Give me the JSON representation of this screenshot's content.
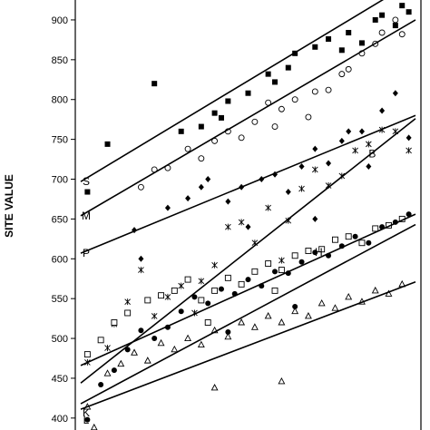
{
  "chart_data": {
    "type": "scatter",
    "ylabel": "SITE VALUE",
    "y_ticks": [
      400,
      450,
      500,
      550,
      600,
      650,
      700,
      750,
      800,
      850,
      900
    ],
    "ylim": [
      385,
      925
    ],
    "xlim": [
      0,
      100
    ],
    "grid": false,
    "series": [
      {
        "name": "S",
        "marker": "filled-square",
        "points": [
          [
            2,
            684
          ],
          [
            8,
            744
          ],
          [
            22,
            820
          ],
          [
            30,
            760
          ],
          [
            36,
            766
          ],
          [
            40,
            783
          ],
          [
            42,
            777
          ],
          [
            50,
            808
          ],
          [
            56,
            832
          ],
          [
            62,
            840
          ],
          [
            64,
            858
          ],
          [
            70,
            866
          ],
          [
            74,
            876
          ],
          [
            80,
            884
          ],
          [
            84,
            871
          ],
          [
            88,
            900
          ],
          [
            90,
            906
          ],
          [
            94,
            893
          ],
          [
            96,
            918
          ],
          [
            98,
            910
          ],
          [
            44,
            798
          ],
          [
            58,
            822
          ],
          [
            78,
            862
          ]
        ]
      },
      {
        "name": "M",
        "marker": "open-circle",
        "points": [
          [
            18,
            690
          ],
          [
            22,
            712
          ],
          [
            26,
            714
          ],
          [
            32,
            738
          ],
          [
            36,
            726
          ],
          [
            40,
            748
          ],
          [
            44,
            760
          ],
          [
            48,
            752
          ],
          [
            52,
            772
          ],
          [
            58,
            766
          ],
          [
            60,
            788
          ],
          [
            64,
            800
          ],
          [
            68,
            778
          ],
          [
            74,
            812
          ],
          [
            78,
            832
          ],
          [
            80,
            838
          ],
          [
            84,
            858
          ],
          [
            88,
            870
          ],
          [
            90,
            884
          ],
          [
            94,
            900
          ],
          [
            96,
            882
          ],
          [
            56,
            796
          ],
          [
            70,
            810
          ]
        ]
      },
      {
        "name": "P",
        "marker": "filled-diamond",
        "points": [
          [
            16,
            636
          ],
          [
            18,
            600
          ],
          [
            26,
            664
          ],
          [
            32,
            676
          ],
          [
            36,
            690
          ],
          [
            38,
            700
          ],
          [
            44,
            672
          ],
          [
            48,
            690
          ],
          [
            54,
            700
          ],
          [
            58,
            706
          ],
          [
            62,
            684
          ],
          [
            66,
            716
          ],
          [
            70,
            738
          ],
          [
            74,
            720
          ],
          [
            78,
            748
          ],
          [
            80,
            760
          ],
          [
            84,
            760
          ],
          [
            86,
            716
          ],
          [
            90,
            786
          ],
          [
            94,
            808
          ],
          [
            98,
            752
          ],
          [
            50,
            640
          ],
          [
            70,
            650
          ]
        ]
      },
      {
        "name": "B",
        "marker": "star",
        "points": [
          [
            2,
            470
          ],
          [
            8,
            488
          ],
          [
            10,
            518
          ],
          [
            14,
            546
          ],
          [
            18,
            586
          ],
          [
            22,
            528
          ],
          [
            26,
            552
          ],
          [
            30,
            566
          ],
          [
            36,
            572
          ],
          [
            40,
            592
          ],
          [
            44,
            640
          ],
          [
            48,
            646
          ],
          [
            52,
            620
          ],
          [
            56,
            664
          ],
          [
            62,
            648
          ],
          [
            66,
            688
          ],
          [
            70,
            712
          ],
          [
            74,
            692
          ],
          [
            78,
            704
          ],
          [
            82,
            736
          ],
          [
            86,
            744
          ],
          [
            90,
            762
          ],
          [
            94,
            760
          ],
          [
            98,
            736
          ],
          [
            34,
            532
          ],
          [
            60,
            598
          ]
        ]
      },
      {
        "name": "H",
        "marker": "open-square",
        "points": [
          [
            2,
            480
          ],
          [
            6,
            498
          ],
          [
            10,
            520
          ],
          [
            14,
            532
          ],
          [
            20,
            548
          ],
          [
            24,
            554
          ],
          [
            28,
            560
          ],
          [
            32,
            574
          ],
          [
            36,
            548
          ],
          [
            40,
            560
          ],
          [
            44,
            576
          ],
          [
            48,
            568
          ],
          [
            52,
            584
          ],
          [
            56,
            594
          ],
          [
            60,
            586
          ],
          [
            64,
            604
          ],
          [
            68,
            610
          ],
          [
            72,
            612
          ],
          [
            76,
            624
          ],
          [
            80,
            628
          ],
          [
            84,
            620
          ],
          [
            88,
            638
          ],
          [
            92,
            642
          ],
          [
            96,
            650
          ],
          [
            38,
            520
          ],
          [
            58,
            560
          ]
        ]
      },
      {
        "name": "K",
        "marker": "filled-circle",
        "points": [
          [
            2,
            398
          ],
          [
            6,
            442
          ],
          [
            10,
            460
          ],
          [
            14,
            486
          ],
          [
            18,
            510
          ],
          [
            22,
            500
          ],
          [
            26,
            514
          ],
          [
            30,
            534
          ],
          [
            34,
            552
          ],
          [
            38,
            544
          ],
          [
            42,
            562
          ],
          [
            46,
            556
          ],
          [
            50,
            574
          ],
          [
            54,
            566
          ],
          [
            58,
            584
          ],
          [
            62,
            582
          ],
          [
            66,
            596
          ],
          [
            70,
            608
          ],
          [
            74,
            604
          ],
          [
            78,
            616
          ],
          [
            82,
            628
          ],
          [
            86,
            620
          ],
          [
            90,
            640
          ],
          [
            94,
            646
          ],
          [
            98,
            656
          ],
          [
            44,
            508
          ],
          [
            64,
            540
          ]
        ]
      },
      {
        "name": "L",
        "marker": "open-triangle",
        "points": [
          [
            2,
            414
          ],
          [
            4,
            388
          ],
          [
            8,
            456
          ],
          [
            12,
            468
          ],
          [
            16,
            482
          ],
          [
            20,
            472
          ],
          [
            24,
            494
          ],
          [
            28,
            486
          ],
          [
            32,
            500
          ],
          [
            36,
            492
          ],
          [
            40,
            510
          ],
          [
            44,
            502
          ],
          [
            48,
            520
          ],
          [
            52,
            514
          ],
          [
            56,
            528
          ],
          [
            60,
            520
          ],
          [
            64,
            534
          ],
          [
            68,
            528
          ],
          [
            72,
            544
          ],
          [
            76,
            538
          ],
          [
            80,
            552
          ],
          [
            84,
            546
          ],
          [
            88,
            560
          ],
          [
            92,
            556
          ],
          [
            96,
            568
          ],
          [
            40,
            438
          ],
          [
            60,
            446
          ]
        ]
      }
    ],
    "lines": [
      {
        "name": "S",
        "x": [
          0,
          100
        ],
        "y": [
          697,
          950
        ]
      },
      {
        "name": "M",
        "x": [
          0,
          100
        ],
        "y": [
          654,
          900
        ]
      },
      {
        "name": "P",
        "x": [
          0,
          100
        ],
        "y": [
          607,
          780
        ]
      },
      {
        "name": "B",
        "x": [
          0,
          100
        ],
        "y": [
          444,
          776
        ]
      },
      {
        "name": "H",
        "x": [
          0,
          100
        ],
        "y": [
          466,
          656
        ]
      },
      {
        "name": "K",
        "x": [
          0,
          100
        ],
        "y": [
          418,
          643
        ]
      },
      {
        "name": "L",
        "x": [
          0,
          100
        ],
        "y": [
          411,
          571
        ]
      }
    ]
  }
}
